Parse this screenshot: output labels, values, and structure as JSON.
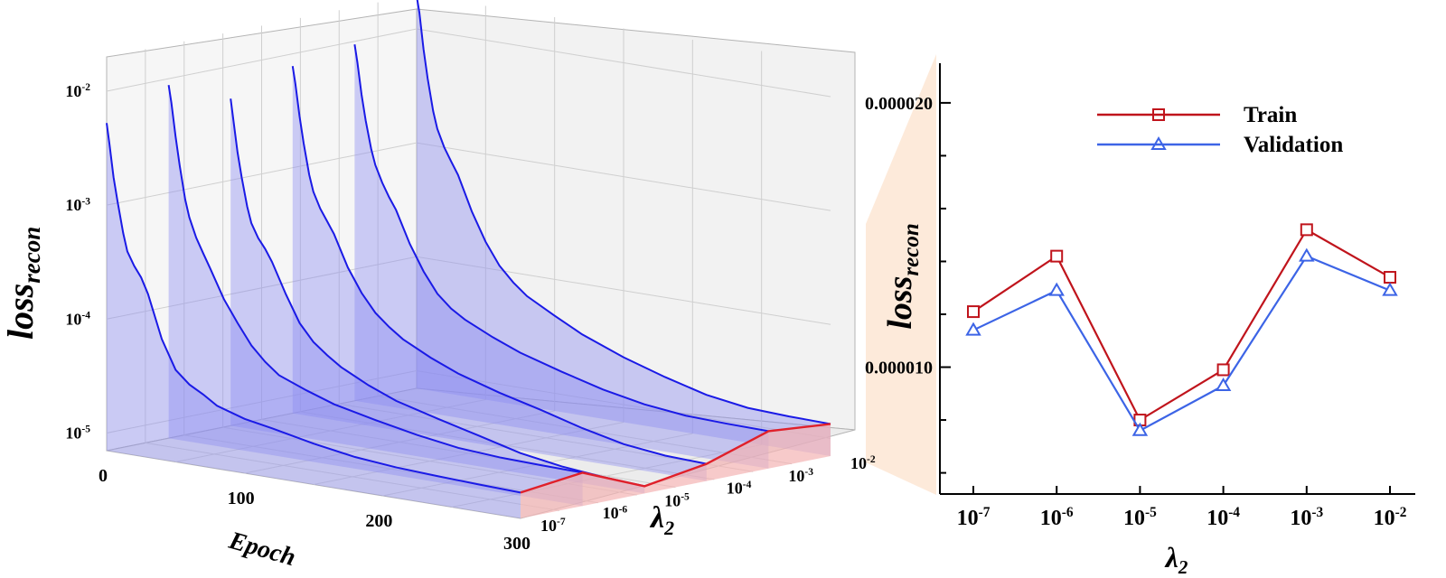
{
  "chart_data": [
    {
      "type": "line",
      "projection": "3d",
      "fill_under": true,
      "x_axis": {
        "label": "Epoch",
        "ticks": [
          "0",
          "100",
          "200",
          "300"
        ],
        "range": [
          0,
          300
        ]
      },
      "y_axis": {
        "label_base": "λ",
        "label_sub": "2",
        "ticks": [
          {
            "base": "10",
            "exp": "-7"
          },
          {
            "base": "10",
            "exp": "-6"
          },
          {
            "base": "10",
            "exp": "-5"
          },
          {
            "base": "10",
            "exp": "-4"
          },
          {
            "base": "10",
            "exp": "-3"
          },
          {
            "base": "10",
            "exp": "-2"
          }
        ]
      },
      "z_axis": {
        "label_base": "loss",
        "label_sub": "recon",
        "scale": "log",
        "range": [
          7e-06,
          0.02
        ],
        "ticks": [
          {
            "base": "10",
            "exp": "-2"
          },
          {
            "base": "10",
            "exp": "-3"
          },
          {
            "base": "10",
            "exp": "-4"
          },
          {
            "base": "10",
            "exp": "-5"
          }
        ]
      },
      "series_colors": {
        "curve": "#1a1ae6",
        "fill": "#8c8cf0",
        "final_line": "#e0202a",
        "final_fill": "#f4b4b4"
      },
      "series": [
        {
          "lambda2": "1e-7",
          "epochs": [
            0,
            2,
            5,
            8,
            12,
            15,
            20,
            25,
            30,
            40,
            50,
            60,
            70,
            80,
            100,
            120,
            150,
            180,
            210,
            240,
            270,
            300
          ],
          "values": [
            0.00525,
            0.0035,
            0.0018,
            0.0011,
            0.0006,
            0.00042,
            0.00032,
            0.00026,
            0.00019,
            8e-05,
            4.5e-05,
            3.5e-05,
            3e-05,
            2.5e-05,
            2.1e-05,
            1.9e-05,
            1.6e-05,
            1.4e-05,
            1.3e-05,
            1.25e-05,
            1.21e-05,
            1.18e-05
          ]
        },
        {
          "lambda2": "1e-6",
          "epochs": [
            0,
            2,
            5,
            8,
            12,
            15,
            20,
            25,
            30,
            40,
            50,
            60,
            70,
            80,
            100,
            120,
            150,
            180,
            210,
            240,
            270,
            300
          ],
          "values": [
            0.0088,
            0.0062,
            0.0032,
            0.0018,
            0.00092,
            0.00065,
            0.00044,
            0.00033,
            0.00025,
            0.00014,
            9e-05,
            6e-05,
            4.5e-05,
            3.6e-05,
            2.9e-05,
            2.4e-05,
            2e-05,
            1.7e-05,
            1.5e-05,
            1.42e-05,
            1.39e-05,
            1.37e-05
          ]
        },
        {
          "lambda2": "1e-5",
          "epochs": [
            0,
            2,
            5,
            8,
            12,
            15,
            20,
            25,
            30,
            40,
            50,
            60,
            70,
            80,
            100,
            120,
            150,
            180,
            210,
            240,
            270,
            300
          ],
          "values": [
            0.0052,
            0.0034,
            0.0018,
            0.0011,
            0.00062,
            0.00045,
            0.00034,
            0.00028,
            0.00022,
            0.00012,
            7e-05,
            5e-05,
            4e-05,
            3.3e-05,
            2.5e-05,
            2e-05,
            1.6e-05,
            1.3e-05,
            1.05e-05,
            9.2e-06,
            8.5e-06,
            8.1e-06
          ]
        },
        {
          "lambda2": "1e-4",
          "epochs": [
            0,
            2,
            5,
            8,
            12,
            15,
            20,
            25,
            30,
            40,
            50,
            60,
            70,
            80,
            100,
            120,
            150,
            180,
            210,
            240,
            270,
            300
          ],
          "values": [
            0.0078,
            0.0055,
            0.0029,
            0.0017,
            0.00092,
            0.00066,
            0.00048,
            0.00038,
            0.0003,
            0.00016,
            0.0001,
            7e-05,
            5.5e-05,
            4.5e-05,
            3.4e-05,
            2.7e-05,
            2.1e-05,
            1.7e-05,
            1.35e-05,
            1.12e-05,
            1.02e-05,
            9.9e-06
          ]
        },
        {
          "lambda2": "1e-3",
          "epochs": [
            0,
            2,
            5,
            8,
            12,
            15,
            20,
            25,
            30,
            40,
            50,
            60,
            70,
            80,
            100,
            120,
            150,
            180,
            210,
            240,
            270,
            300
          ],
          "values": [
            0.0094,
            0.0066,
            0.0035,
            0.0021,
            0.0012,
            0.00088,
            0.00063,
            0.00048,
            0.00038,
            0.0002,
            0.00012,
            8e-05,
            6.2e-05,
            5.2e-05,
            4e-05,
            3.2e-05,
            2.5e-05,
            2e-05,
            1.7e-05,
            1.55e-05,
            1.51e-05,
            1.49e-05
          ]
        },
        {
          "lambda2": "1e-2",
          "epochs": [
            0,
            2,
            5,
            8,
            12,
            15,
            20,
            25,
            30,
            40,
            50,
            60,
            70,
            80,
            100,
            120,
            150,
            180,
            210,
            240,
            270,
            300
          ],
          "values": [
            0.0195,
            0.014,
            0.0068,
            0.0038,
            0.002,
            0.00142,
            0.001,
            0.00077,
            0.0006,
            0.0003,
            0.00017,
            0.00011,
            8.2e-05,
            6.5e-05,
            4.8e-05,
            3.6e-05,
            2.6e-05,
            2e-05,
            1.6e-05,
            1.41e-05,
            1.36e-05,
            1.34e-05
          ]
        }
      ]
    },
    {
      "type": "line",
      "categories": [
        {
          "base": "10",
          "exp": "-7"
        },
        {
          "base": "10",
          "exp": "-6"
        },
        {
          "base": "10",
          "exp": "-5"
        },
        {
          "base": "10",
          "exp": "-4"
        },
        {
          "base": "10",
          "exp": "-3"
        },
        {
          "base": "10",
          "exp": "-2"
        }
      ],
      "x_label_base": "λ",
      "x_label_sub": "2",
      "y_label_base": "loss",
      "y_label_sub": "recon",
      "ylim": [
        5.2e-06,
        2.15e-05
      ],
      "y_ticks": [
        "0.000020",
        "0.000010"
      ],
      "y_ticks_values": [
        2e-05,
        1e-05
      ],
      "legend": {
        "position": "top-right"
      },
      "series": [
        {
          "name": "Train",
          "color": "#c0141c",
          "marker": "square",
          "values": [
            1.21e-05,
            1.42e-05,
            8e-06,
            9.9e-06,
            1.52e-05,
            1.34e-05
          ]
        },
        {
          "name": "Validation",
          "color": "#3c64e6",
          "marker": "triangle",
          "values": [
            1.14e-05,
            1.29e-05,
            7.6e-06,
            9.3e-06,
            1.42e-05,
            1.29e-05
          ]
        }
      ]
    }
  ]
}
